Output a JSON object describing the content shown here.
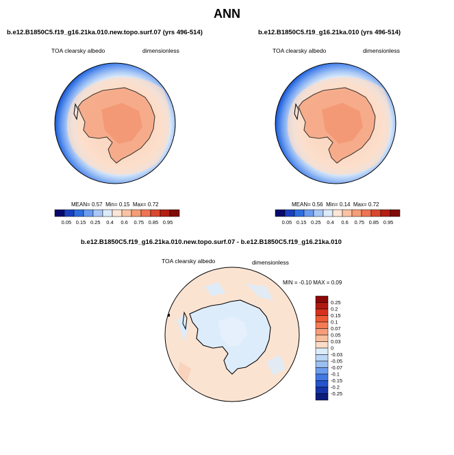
{
  "title": "ANN",
  "panels": [
    {
      "case": "b.e12.B1850C5.f19_g16.21ka.010.new.topo.surf.07 (yrs 496-514)",
      "variable": "TOA clearsky albedo",
      "units": "dimensionless",
      "mean_label": "MEAN=",
      "mean": "0.57",
      "min_label": "Min=",
      "min": "0.15",
      "max_label": "Max=",
      "max": "0.72"
    },
    {
      "case": "b.e12.B1850C5.f19_g16.21ka.010 (yrs 496-514)",
      "variable": "TOA clearsky albedo",
      "units": "dimensionless",
      "mean_label": "MEAN=",
      "mean": "0.56",
      "min_label": "Min=",
      "min": "0.14",
      "max_label": "Max=",
      "max": "0.72"
    }
  ],
  "diff_panel": {
    "case": "b.e12.B1850C5.f19_g16.21ka.010.new.topo.surf.07 - b.e12.B1850C5.f19_g16.21ka.010",
    "variable": "TOA clearsky albedo",
    "units": "dimensionless",
    "minmax_text": "MIN = -0.10 MAX =  0.09"
  },
  "colorbar_main": {
    "labels": [
      "0.05",
      "0.15",
      "0.25",
      "0.4",
      "0.6",
      "0.75",
      "0.85",
      "0.95"
    ],
    "colors": [
      "#08086b",
      "#1a3fbf",
      "#2e6fe0",
      "#6b9cf0",
      "#a9c8f5",
      "#dcecfb",
      "#fde6d6",
      "#fac3a3",
      "#f59d77",
      "#ee7452",
      "#d9482d",
      "#b41f14",
      "#7f0a08"
    ]
  },
  "colorbar_diff": {
    "labels": [
      "0.25",
      "0.2",
      "0.15",
      "0.1",
      "0.07",
      "0.05",
      "0.03",
      "0",
      "-0.03",
      "-0.05",
      "-0.07",
      "-0.1",
      "-0.15",
      "-0.2",
      "-0.25"
    ],
    "colors": [
      "#8b0a08",
      "#b01a10",
      "#d7301d",
      "#ee5a34",
      "#f47c55",
      "#f69e7a",
      "#f9c09f",
      "#fbdcc8",
      "#dcecfb",
      "#bcd6f6",
      "#9bbff1",
      "#6e9ded",
      "#4377e3",
      "#2554cc",
      "#1434a8",
      "#0c1d7a"
    ]
  }
}
